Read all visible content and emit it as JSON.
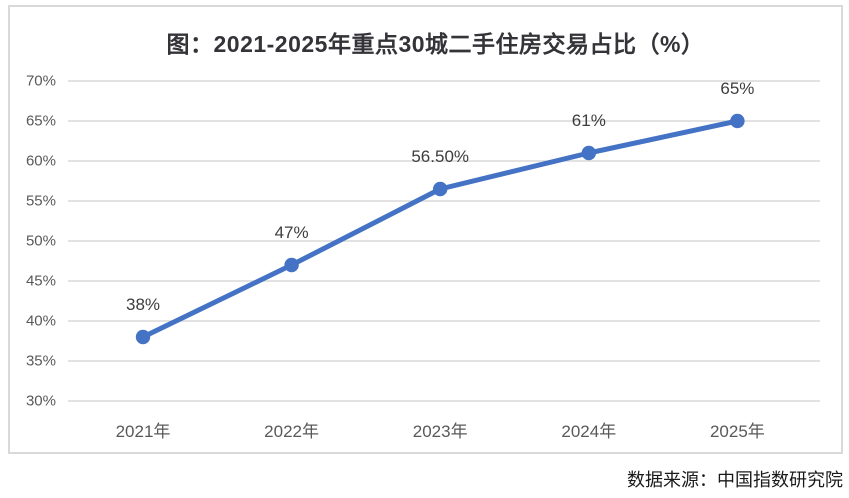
{
  "chart_data": {
    "type": "line",
    "title": "图：2021-2025年重点30城二手住房交易占比（%）",
    "categories": [
      "2021年",
      "2022年",
      "2023年",
      "2024年",
      "2025年"
    ],
    "values": [
      38,
      47,
      56.5,
      61,
      65
    ],
    "value_labels": [
      "38%",
      "47%",
      "56.50%",
      "61%",
      "65%"
    ],
    "xlabel": "",
    "ylabel": "",
    "ylim": [
      30,
      70
    ],
    "ytick_step": 5,
    "ytick_suffix": "%",
    "grid": true,
    "legend": false,
    "marker": "circle",
    "source": "数据来源：中国指数研究院",
    "colors": {
      "line": "#4472C4",
      "marker": "#4472C4",
      "gridline": "#D9D9D9",
      "axis_label": "#595959",
      "data_label": "#3D3D3D",
      "title": "#333338",
      "border": "#D9D9D9",
      "background": "#FFFFFF",
      "source_text": "#1A1A1A"
    }
  }
}
